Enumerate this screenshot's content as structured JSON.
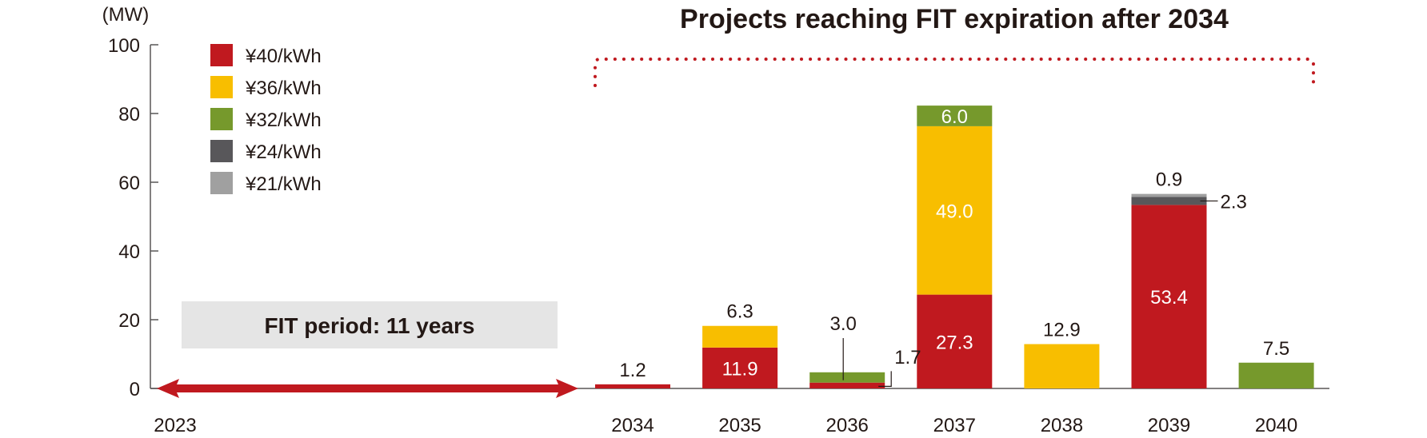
{
  "chart_data": {
    "type": "bar",
    "stacked": true,
    "title": "Projects reaching FIT expiration after 2034",
    "unit_label": "(MW)",
    "ylabel": "",
    "xlabel": "",
    "ylim": [
      0,
      100
    ],
    "yticks": [
      0,
      20,
      40,
      60,
      80,
      100
    ],
    "start_year_label": "2023",
    "fit_period_label": "FIT period: 11 years",
    "categories": [
      "2034",
      "2035",
      "2036",
      "2037",
      "2038",
      "2039",
      "2040"
    ],
    "series": [
      {
        "name": "¥40/kWh",
        "color": "#C0191F",
        "values": [
          1.2,
          11.9,
          1.7,
          27.3,
          0,
          53.4,
          0
        ]
      },
      {
        "name": "¥36/kWh",
        "color": "#F8BE00",
        "values": [
          0,
          6.3,
          0,
          49.0,
          12.9,
          0,
          0
        ]
      },
      {
        "name": "¥32/kWh",
        "color": "#76992C",
        "values": [
          0,
          0,
          3.0,
          6.0,
          0,
          0,
          7.5
        ]
      },
      {
        "name": "¥24/kWh",
        "color": "#58575A",
        "values": [
          0,
          0,
          0,
          0,
          0,
          2.3,
          0
        ]
      },
      {
        "name": "¥21/kWh",
        "color": "#A0A0A0",
        "values": [
          0,
          0,
          0,
          0,
          0,
          0.9,
          0
        ]
      }
    ],
    "data_labels": [
      {
        "category": "2034",
        "series": "¥40/kWh",
        "text": "1.2",
        "placement": "above"
      },
      {
        "category": "2035",
        "series": "¥40/kWh",
        "text": "11.9",
        "placement": "inside"
      },
      {
        "category": "2035",
        "series": "¥36/kWh",
        "text": "6.3",
        "placement": "above"
      },
      {
        "category": "2036",
        "series": "¥40/kWh",
        "text": "1.7",
        "placement": "right"
      },
      {
        "category": "2036",
        "series": "¥32/kWh",
        "text": "3.0",
        "placement": "above-leader"
      },
      {
        "category": "2037",
        "series": "¥40/kWh",
        "text": "27.3",
        "placement": "inside"
      },
      {
        "category": "2037",
        "series": "¥36/kWh",
        "text": "49.0",
        "placement": "inside"
      },
      {
        "category": "2037",
        "series": "¥32/kWh",
        "text": "6.0",
        "placement": "inside"
      },
      {
        "category": "2038",
        "series": "¥36/kWh",
        "text": "12.9",
        "placement": "above"
      },
      {
        "category": "2039",
        "series": "¥40/kWh",
        "text": "53.4",
        "placement": "inside"
      },
      {
        "category": "2039",
        "series": "¥24/kWh",
        "text": "2.3",
        "placement": "right"
      },
      {
        "category": "2039",
        "series": "¥21/kWh",
        "text": "0.9",
        "placement": "above"
      },
      {
        "category": "2040",
        "series": "¥32/kWh",
        "text": "7.5",
        "placement": "above"
      }
    ],
    "legend": "top-left",
    "grid": false
  },
  "colors": {
    "accent": "#C0191F",
    "axis": "#595757",
    "fit_box": "#E5E5E5"
  }
}
